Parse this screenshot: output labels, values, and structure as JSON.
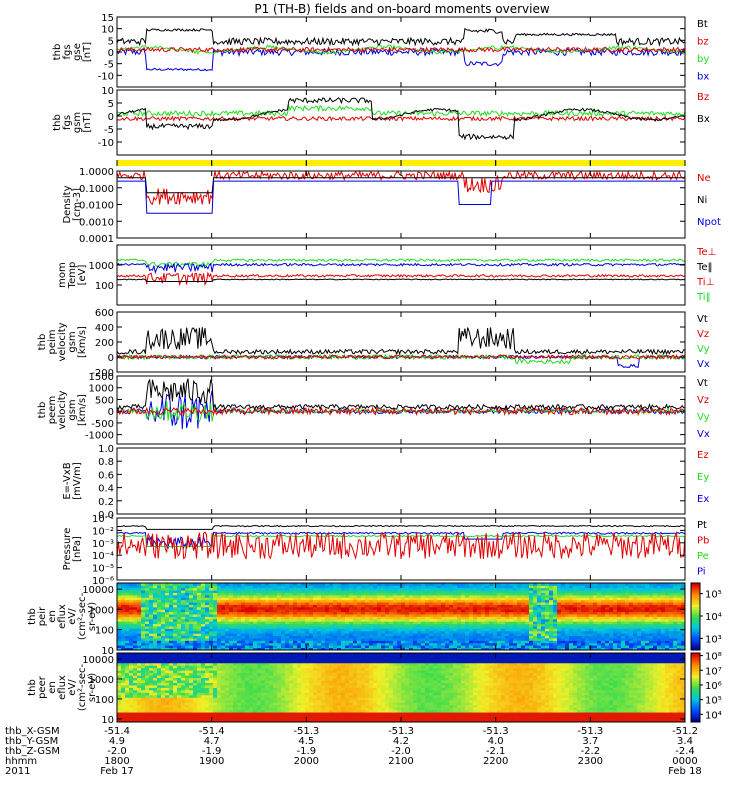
{
  "title": "P1 (TH-B) fields and on-board moments overview",
  "colors": {
    "black": "#000000",
    "red": "#e00000",
    "green": "#22dd22",
    "blue": "#0000dd",
    "yellow": "#ffee00"
  },
  "chart_data": [
    {
      "type": "line",
      "id": "fgs",
      "ylabel": [
        "thb",
        "fgs",
        "gse",
        "[nT]"
      ],
      "ylim": [
        -15,
        15
      ],
      "yticks": [
        "15",
        "10",
        "5",
        "0",
        "-5",
        "-10"
      ],
      "ytick_values": [
        15,
        10,
        5,
        0,
        -5,
        -10
      ],
      "legend": [
        {
          "name": "Bt",
          "color": "black"
        },
        {
          "name": "bz",
          "color": "red"
        },
        {
          "name": "by",
          "color": "green"
        },
        {
          "name": "bx",
          "color": "blue"
        }
      ]
    },
    {
      "type": "line",
      "id": "fgs_gsm",
      "ylabel": [
        "thb",
        "fgs",
        "gsm",
        "[nT]"
      ],
      "ylim": [
        -15,
        10
      ],
      "yticks": [
        "10",
        "5",
        "0",
        "-5",
        "-10"
      ],
      "ytick_values": [
        10,
        5,
        0,
        -5,
        -10
      ],
      "legend": [
        {
          "name": "Bz",
          "color": "red"
        },
        {
          "name": "Bx",
          "color": "black"
        }
      ]
    },
    {
      "type": "bar",
      "id": "mode",
      "ylabel": [],
      "ylim": [
        0,
        1
      ],
      "yticks": [],
      "ytick_values": [],
      "legend": []
    },
    {
      "type": "line",
      "id": "density",
      "ylabel": [
        "Density",
        "[cm-3]"
      ],
      "ylim": [
        0.0001,
        1
      ],
      "log": true,
      "yticks": [
        "1.0000",
        "0.1000",
        "0.0100",
        "0.0010",
        "0.0001"
      ],
      "ytick_values": [
        1,
        0.1,
        0.01,
        0.001,
        0.0001
      ],
      "legend": [
        {
          "name": "Ne",
          "color": "red"
        },
        {
          "name": "Ni",
          "color": "black"
        },
        {
          "name": "Npot",
          "color": "blue"
        }
      ]
    },
    {
      "type": "line",
      "id": "temp",
      "ylabel": [
        "mom",
        "Temp",
        "[eV]"
      ],
      "ylim": [
        10,
        10000
      ],
      "log": true,
      "yticks": [
        "1000",
        "100"
      ],
      "ytick_values": [
        1000,
        100
      ],
      "legend": [
        {
          "name": "Te⊥",
          "color": "red"
        },
        {
          "name": "Te‖",
          "color": "black"
        },
        {
          "name": "Ti⊥",
          "color": "red"
        },
        {
          "name": "Ti‖",
          "color": "green"
        }
      ]
    },
    {
      "type": "line",
      "id": "peim_v",
      "ylabel": [
        "thb",
        "peim",
        "velocity",
        "gsm",
        "[km/s]"
      ],
      "ylim": [
        -200,
        600
      ],
      "yticks": [
        "600",
        "400",
        "200",
        "0",
        "-200"
      ],
      "ytick_values": [
        600,
        400,
        200,
        0,
        -200
      ],
      "legend": [
        {
          "name": "Vt",
          "color": "black"
        },
        {
          "name": "Vz",
          "color": "red"
        },
        {
          "name": "Vy",
          "color": "green"
        },
        {
          "name": "Vx",
          "color": "blue"
        }
      ]
    },
    {
      "type": "line",
      "id": "peem_v",
      "ylabel": [
        "thb",
        "peem",
        "velocity",
        "gsm",
        "[km/s]"
      ],
      "ylim": [
        -1400,
        1500
      ],
      "yticks": [
        "1500",
        "1000",
        "500",
        "0",
        "-500",
        "-1000"
      ],
      "ytick_values": [
        1500,
        1000,
        500,
        0,
        -500,
        -1000
      ],
      "legend": [
        {
          "name": "Vt",
          "color": "black"
        },
        {
          "name": "Vz",
          "color": "red"
        },
        {
          "name": "Vy",
          "color": "green"
        },
        {
          "name": "Vx",
          "color": "blue"
        }
      ]
    },
    {
      "type": "line",
      "id": "efield",
      "ylabel": [
        "E=-VxB",
        "[mV/m]"
      ],
      "ylim": [
        0,
        1
      ],
      "yticks": [
        "1.0",
        "0.8",
        "0.6",
        "0.4",
        "0.2",
        "0.0"
      ],
      "ytick_values": [
        1,
        0.8,
        0.6,
        0.4,
        0.2,
        0
      ],
      "legend": [
        {
          "name": "Ez",
          "color": "red"
        },
        {
          "name": "Ey",
          "color": "green"
        },
        {
          "name": "Ex",
          "color": "blue"
        }
      ]
    },
    {
      "type": "line",
      "id": "pressure",
      "ylabel": [
        "Pressure",
        "[nPa]"
      ],
      "ylim": [
        1e-06,
        0.1
      ],
      "log": true,
      "yticks": [
        "10⁻¹",
        "10⁻²",
        "10⁻³",
        "10⁻⁴",
        "10⁻⁵",
        "10⁻⁶"
      ],
      "ytick_values": [
        0.1,
        0.01,
        0.001,
        0.0001,
        1e-05,
        1e-06
      ],
      "legend": [
        {
          "name": "Pt",
          "color": "black"
        },
        {
          "name": "Pb",
          "color": "red"
        },
        {
          "name": "Pe",
          "color": "green"
        },
        {
          "name": "Pi",
          "color": "blue"
        }
      ]
    },
    {
      "type": "heatmap",
      "id": "peir",
      "ylabel": [
        "thb",
        "peir",
        "en",
        "eflux",
        "eV/",
        "(cm²-sec-",
        "sr-eV)"
      ],
      "ylim": [
        10,
        20000
      ],
      "log": true,
      "yticks": [
        "10000",
        "1000",
        "100",
        "10"
      ],
      "ytick_values": [
        10000,
        1000,
        100,
        10
      ],
      "colorbar": {
        "ticks": [
          "10⁵",
          "10⁴",
          "10³"
        ],
        "tick_values": [
          100000,
          10000,
          1000
        ],
        "range": [
          300,
          300000
        ]
      },
      "legend": []
    },
    {
      "type": "heatmap",
      "id": "peer",
      "ylabel": [
        "thb",
        "peer",
        "en",
        "eflux",
        "eV/",
        "(cm²-sec-",
        "sr-eV)"
      ],
      "ylim": [
        7,
        20000
      ],
      "log": true,
      "yticks": [
        "10000",
        "1000",
        "100",
        "10"
      ],
      "ytick_values": [
        10000,
        1000,
        100,
        10
      ],
      "colorbar": {
        "ticks": [
          "10⁸",
          "10⁷",
          "10⁶",
          "10⁵",
          "10⁴"
        ],
        "tick_values": [
          100000000,
          10000000,
          1000000,
          100000,
          10000
        ],
        "range": [
          3000,
          150000000
        ]
      },
      "legend": []
    }
  ],
  "x_axis": {
    "rows": [
      {
        "label": "thb_X-GSM",
        "values": [
          "-51.4",
          "-51.4",
          "-51.3",
          "-51.3",
          "-51.3",
          "-51.3",
          "-51.2"
        ]
      },
      {
        "label": "thb_Y-GSM",
        "values": [
          "4.9",
          "4.7",
          "4.5",
          "4.2",
          "4.0",
          "3.7",
          "3.4"
        ]
      },
      {
        "label": "thb_Z-GSM",
        "values": [
          "-2.0",
          "-1.9",
          "-1.9",
          "-2.0",
          "-2.1",
          "-2.2",
          "-2.4"
        ]
      },
      {
        "label": "hhmm",
        "values": [
          "1800",
          "1900",
          "2000",
          "2100",
          "2200",
          "2300",
          "0000"
        ]
      },
      {
        "label": "2011",
        "values": [
          "Feb 17",
          "",
          "",
          "",
          "",
          "",
          "Feb 18"
        ]
      }
    ],
    "time_hours": [
      18,
      19,
      20,
      21,
      22,
      23,
      24
    ]
  }
}
